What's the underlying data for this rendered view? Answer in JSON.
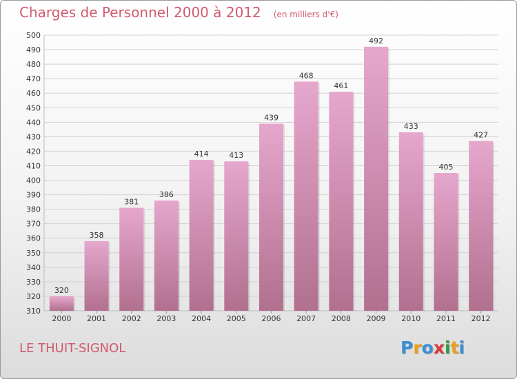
{
  "header": {
    "title": "Charges de Personnel 2000 à 2012",
    "subtitle": "(en milliers d'€)"
  },
  "footer": {
    "commune": "LE THUIT-SIGNOL",
    "logo_text": "Proxiti",
    "logo_colors": [
      "#3a8fd6",
      "#e8a020",
      "#3a8fd6",
      "#d83a3a",
      "#2e9a3e",
      "#e8a020",
      "#3a8fd6"
    ]
  },
  "colors": {
    "bar_top": "#e6a7cd",
    "bar_bottom": "#b2708f",
    "text_accent": "#d15a6e",
    "axis_text": "#333333"
  },
  "chart_data": {
    "type": "bar",
    "categories": [
      "2000",
      "2001",
      "2002",
      "2003",
      "2004",
      "2005",
      "2006",
      "2007",
      "2008",
      "2009",
      "2010",
      "2011",
      "2012"
    ],
    "values": [
      320,
      358,
      381,
      386,
      414,
      413,
      439,
      468,
      461,
      492,
      433,
      405,
      427
    ],
    "ylim": [
      310,
      500
    ],
    "ytick_step": 10,
    "grid": true,
    "data_labels": true
  }
}
